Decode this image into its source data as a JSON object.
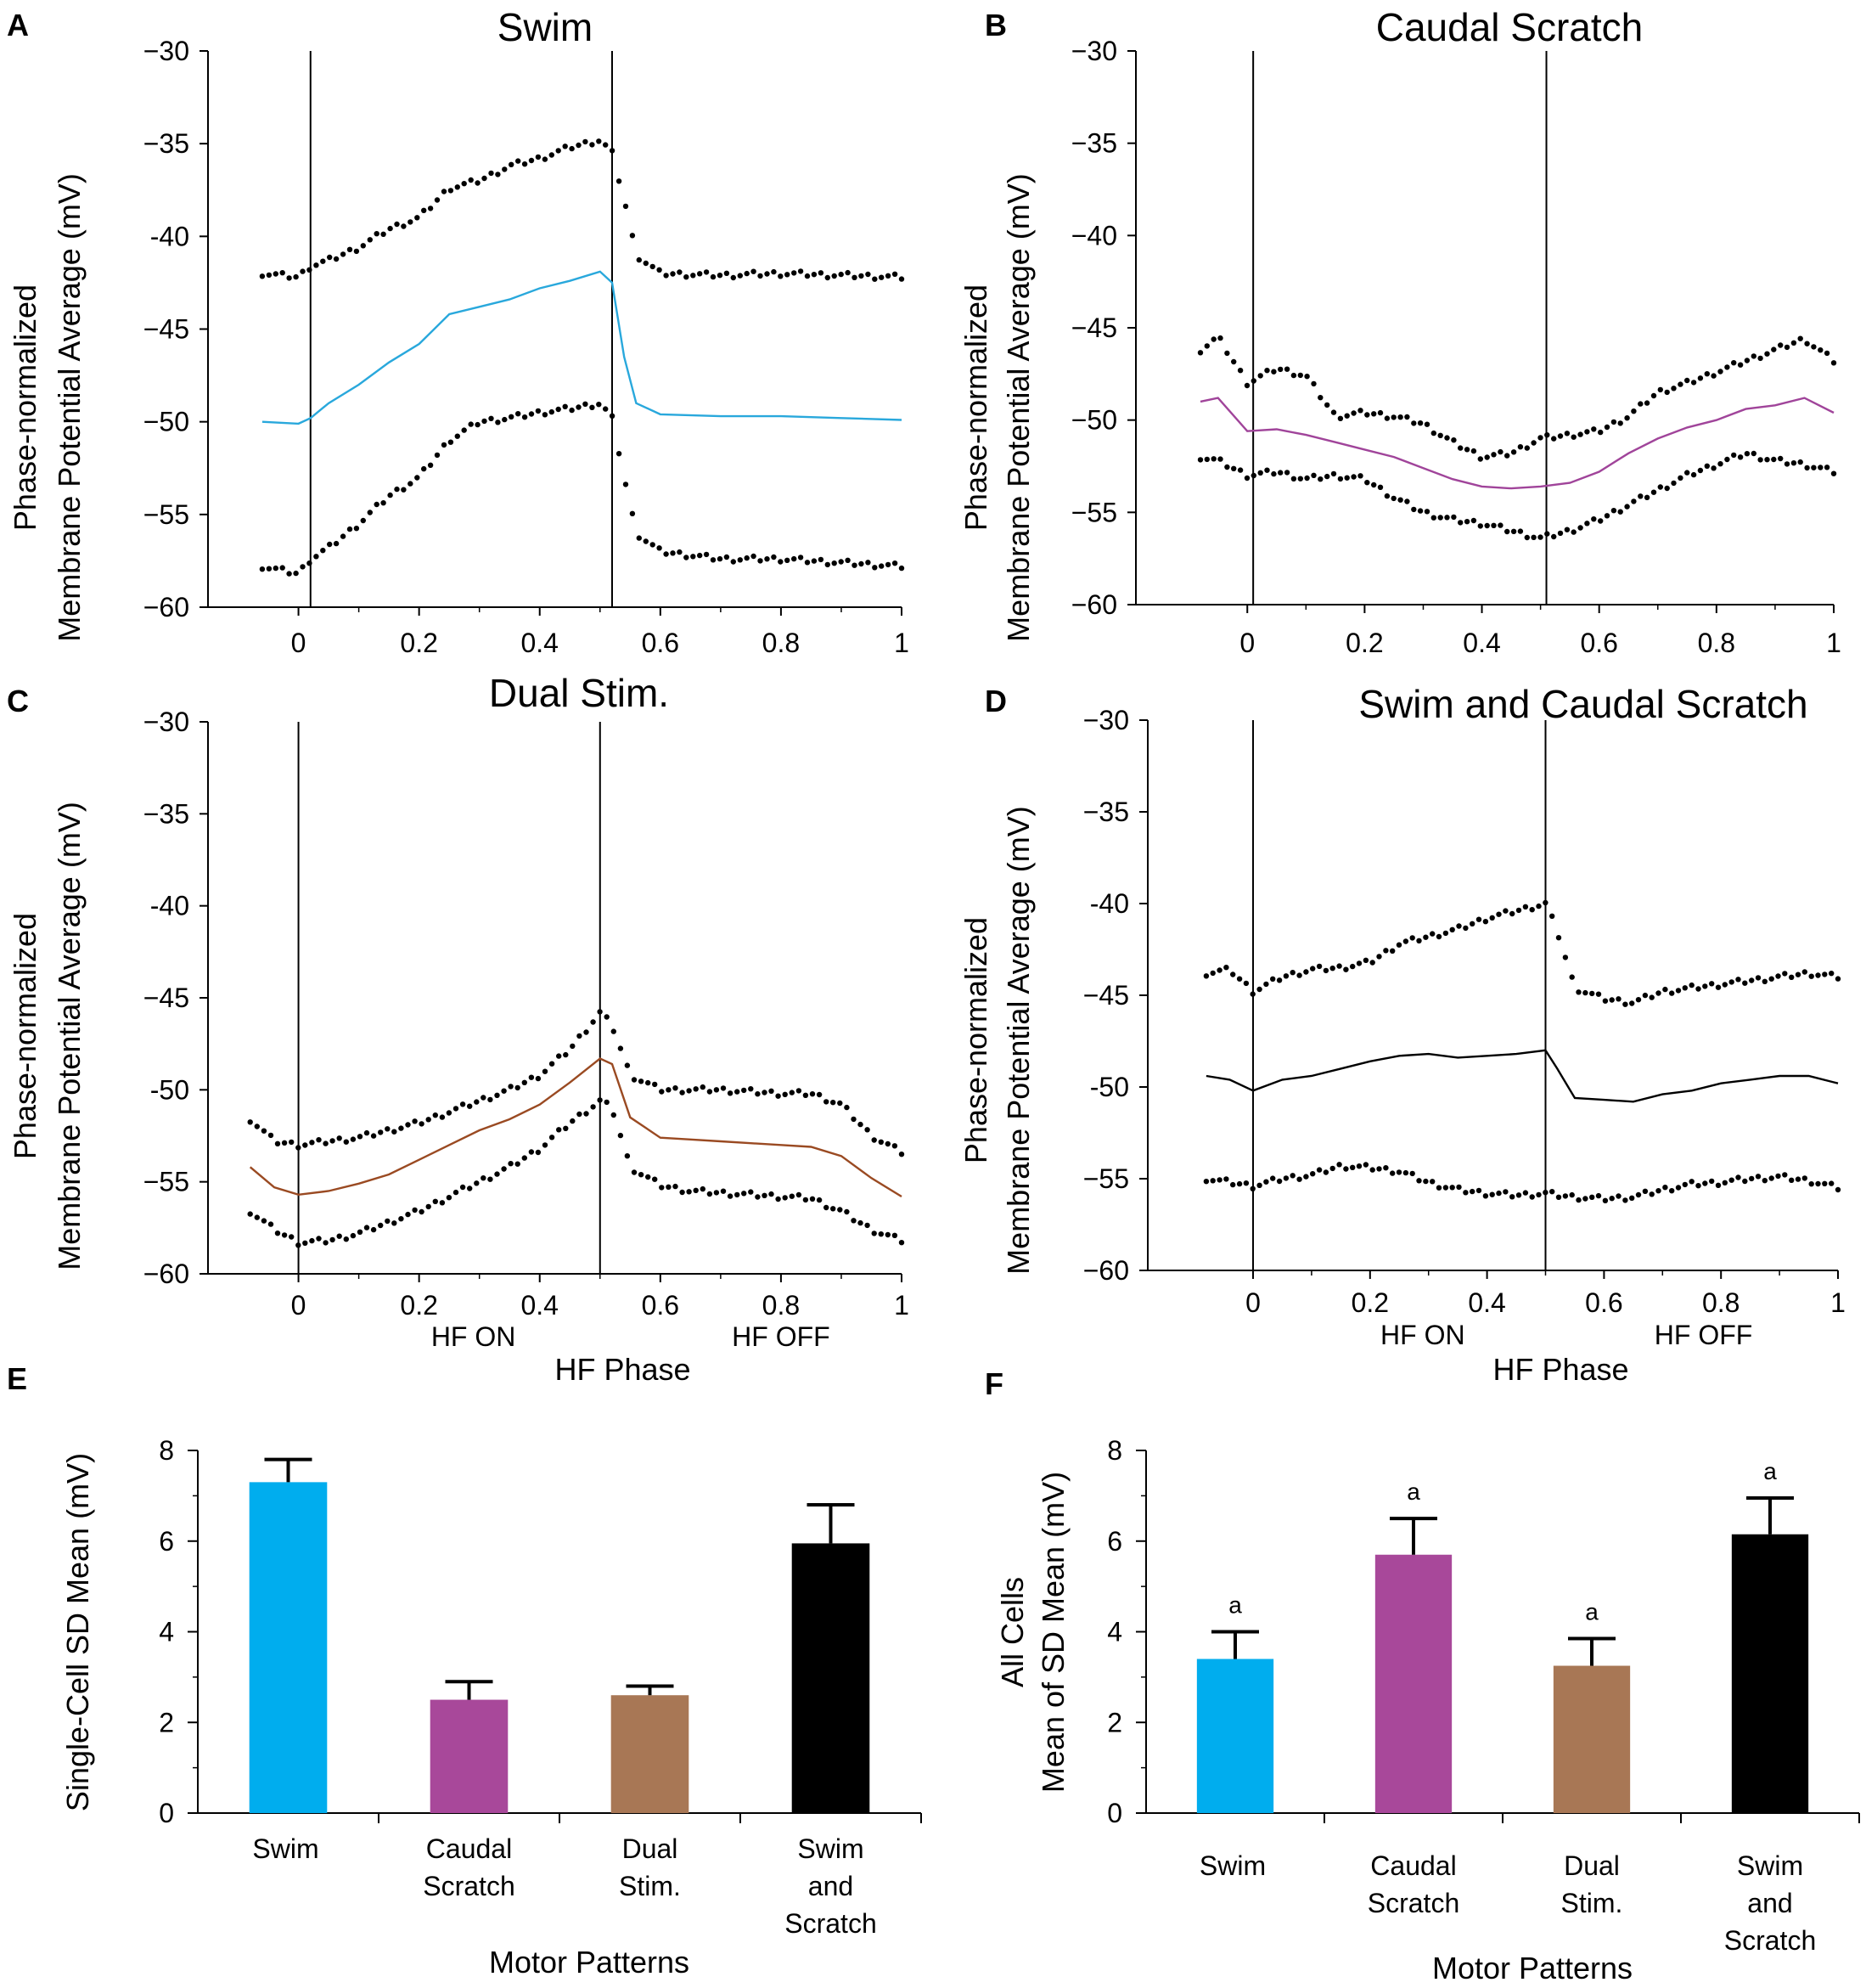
{
  "figure_id": "membrane-potential-figure",
  "chart_data": [
    {
      "panel": "A",
      "type": "line",
      "title": "Swim",
      "ylabel_lines": [
        "Phase-normalized",
        "Membrane Potential Average (mV)"
      ],
      "xlabel": "",
      "y_ticks": [
        "−30",
        "−35",
        "-40",
        "−45",
        "−50",
        "−55",
        "−60"
      ],
      "y_tick_values": [
        -30,
        -35,
        -40,
        -45,
        -50,
        -55,
        -60
      ],
      "x_ticks": [
        "0",
        "0.2",
        "0.4",
        "0.6",
        "0.8",
        "1"
      ],
      "x_tick_values": [
        0,
        0.2,
        0.4,
        0.6,
        0.8,
        1
      ],
      "xlim": [
        -0.15,
        1.0
      ],
      "ylim": [
        -60,
        -30
      ],
      "vlines": [
        0.02,
        0.52
      ],
      "phase_labels": [],
      "mean_color": "#29a8dc",
      "series": [
        {
          "name": "upper",
          "style": "dots",
          "x": [
            -0.06,
            0.0,
            0.02,
            0.05,
            0.1,
            0.15,
            0.2,
            0.25,
            0.3,
            0.35,
            0.4,
            0.45,
            0.5,
            0.52,
            0.54,
            0.56,
            0.6,
            0.7,
            0.8,
            0.9,
            1.0
          ],
          "y": [
            -42.0,
            -42.2,
            -41.6,
            -41.3,
            -40.6,
            -39.6,
            -39.0,
            -37.4,
            -37.0,
            -36.2,
            -35.8,
            -35.2,
            -34.8,
            -35.5,
            -38.0,
            -41.0,
            -42.0,
            -42.1,
            -42.0,
            -42.1,
            -42.2
          ]
        },
        {
          "name": "mean",
          "style": "line",
          "x": [
            -0.06,
            0.0,
            0.02,
            0.05,
            0.1,
            0.15,
            0.2,
            0.25,
            0.3,
            0.35,
            0.4,
            0.45,
            0.5,
            0.52,
            0.54,
            0.56,
            0.6,
            0.7,
            0.8,
            0.9,
            1.0
          ],
          "y": [
            -50.0,
            -50.1,
            -49.8,
            -49.0,
            -48.0,
            -46.8,
            -45.8,
            -44.2,
            -43.8,
            -43.4,
            -42.8,
            -42.4,
            -41.9,
            -42.5,
            -46.5,
            -49.0,
            -49.6,
            -49.7,
            -49.7,
            -49.8,
            -49.9
          ]
        },
        {
          "name": "lower",
          "style": "dots",
          "x": [
            -0.06,
            0.0,
            0.02,
            0.05,
            0.1,
            0.15,
            0.2,
            0.25,
            0.3,
            0.35,
            0.4,
            0.45,
            0.5,
            0.52,
            0.54,
            0.56,
            0.6,
            0.7,
            0.8,
            0.9,
            1.0
          ],
          "y": [
            -57.8,
            -58.2,
            -57.4,
            -56.8,
            -55.5,
            -54.0,
            -53.0,
            -51.0,
            -50.0,
            -49.8,
            -49.5,
            -49.3,
            -49.0,
            -49.8,
            -53.0,
            -56.0,
            -57.0,
            -57.4,
            -57.4,
            -57.6,
            -57.8
          ]
        }
      ]
    },
    {
      "panel": "B",
      "type": "line",
      "title": "Caudal Scratch",
      "ylabel_lines": [
        "Phase-normalized",
        "Membrane Potential Average (mV)"
      ],
      "xlabel": "",
      "y_ticks": [
        "−30",
        "−35",
        "−40",
        "−45",
        "−50",
        "−55",
        "−60"
      ],
      "y_tick_values": [
        -30,
        -35,
        -40,
        -45,
        -50,
        -55,
        -60
      ],
      "x_ticks": [
        "0",
        "0.2",
        "0.4",
        "0.6",
        "0.8",
        "1"
      ],
      "x_tick_values": [
        0,
        0.2,
        0.4,
        0.6,
        0.8,
        1
      ],
      "xlim": [
        -0.19,
        1.0
      ],
      "ylim": [
        -60,
        -30
      ],
      "vlines": [
        0.01,
        0.51
      ],
      "phase_labels": [],
      "mean_color": "#a0449a",
      "series": [
        {
          "name": "upper",
          "style": "dots",
          "x": [
            -0.08,
            -0.05,
            0.0,
            0.05,
            0.1,
            0.15,
            0.2,
            0.25,
            0.3,
            0.35,
            0.4,
            0.45,
            0.5,
            0.55,
            0.6,
            0.65,
            0.7,
            0.75,
            0.8,
            0.85,
            0.9,
            0.95,
            1.0
          ],
          "y": [
            -46.2,
            -45.5,
            -48.0,
            -47.2,
            -47.6,
            -49.8,
            -49.6,
            -49.8,
            -50.2,
            -51.2,
            -52.0,
            -51.8,
            -51.0,
            -50.8,
            -50.6,
            -49.8,
            -48.5,
            -48.0,
            -47.4,
            -46.8,
            -46.2,
            -45.6,
            -46.8
          ]
        },
        {
          "name": "mean",
          "style": "line",
          "x": [
            -0.08,
            -0.05,
            0.0,
            0.05,
            0.1,
            0.15,
            0.2,
            0.25,
            0.3,
            0.35,
            0.4,
            0.45,
            0.5,
            0.55,
            0.6,
            0.65,
            0.7,
            0.75,
            0.8,
            0.85,
            0.9,
            0.95,
            1.0
          ],
          "y": [
            -49.0,
            -48.8,
            -50.6,
            -50.5,
            -50.8,
            -51.2,
            -51.6,
            -52.0,
            -52.6,
            -53.2,
            -53.6,
            -53.7,
            -53.6,
            -53.4,
            -52.8,
            -51.8,
            -51.0,
            -50.4,
            -50.0,
            -49.4,
            -49.2,
            -48.8,
            -49.6
          ]
        },
        {
          "name": "lower",
          "style": "dots",
          "x": [
            -0.08,
            -0.05,
            0.0,
            0.05,
            0.1,
            0.15,
            0.2,
            0.25,
            0.3,
            0.35,
            0.4,
            0.45,
            0.5,
            0.55,
            0.6,
            0.65,
            0.7,
            0.75,
            0.8,
            0.85,
            0.9,
            0.95,
            1.0
          ],
          "y": [
            -52.0,
            -52.2,
            -53.0,
            -52.8,
            -53.2,
            -53.0,
            -53.2,
            -54.2,
            -55.0,
            -55.4,
            -55.6,
            -56.0,
            -56.4,
            -56.0,
            -55.4,
            -54.6,
            -53.8,
            -53.0,
            -52.4,
            -51.8,
            -52.2,
            -52.4,
            -52.8
          ]
        }
      ]
    },
    {
      "panel": "C",
      "type": "line",
      "title": "Dual Stim.",
      "ylabel_lines": [
        "Phase-normalized",
        "Membrane Potential Average (mV)"
      ],
      "xlabel": "HF Phase",
      "y_ticks": [
        "−30",
        "−35",
        "-40",
        "−45",
        "-50",
        "−55",
        "−60"
      ],
      "y_tick_values": [
        -30,
        -35,
        -40,
        -45,
        -50,
        -55,
        -60
      ],
      "x_ticks": [
        "0",
        "0.2",
        "0.4",
        "0.6",
        "0.8",
        "1"
      ],
      "x_tick_values": [
        0,
        0.2,
        0.4,
        0.6,
        0.8,
        1
      ],
      "xlim": [
        -0.15,
        1.0
      ],
      "ylim": [
        -60,
        -30
      ],
      "vlines": [
        0.0,
        0.5
      ],
      "phase_labels": [
        {
          "text": "HF ON",
          "x": 0.29
        },
        {
          "text": "HF OFF",
          "x": 0.8
        }
      ],
      "mean_color": "#9a4a22",
      "series": [
        {
          "name": "upper",
          "style": "dots",
          "x": [
            -0.08,
            -0.04,
            0.0,
            0.05,
            0.1,
            0.15,
            0.2,
            0.25,
            0.3,
            0.35,
            0.4,
            0.45,
            0.5,
            0.52,
            0.55,
            0.6,
            0.65,
            0.7,
            0.75,
            0.8,
            0.85,
            0.9,
            0.95,
            1.0
          ],
          "y": [
            -51.6,
            -52.8,
            -53.0,
            -52.8,
            -52.6,
            -52.2,
            -51.8,
            -51.2,
            -50.6,
            -50.0,
            -49.2,
            -47.8,
            -45.8,
            -46.5,
            -49.2,
            -50.0,
            -50.0,
            -50.0,
            -50.1,
            -50.2,
            -50.2,
            -50.8,
            -52.5,
            -53.4
          ]
        },
        {
          "name": "mean",
          "style": "line",
          "x": [
            -0.08,
            -0.04,
            0.0,
            0.05,
            0.1,
            0.15,
            0.2,
            0.25,
            0.3,
            0.35,
            0.4,
            0.45,
            0.5,
            0.52,
            0.55,
            0.6,
            0.65,
            0.7,
            0.75,
            0.8,
            0.85,
            0.9,
            0.95,
            1.0
          ],
          "y": [
            -54.2,
            -55.3,
            -55.7,
            -55.5,
            -55.1,
            -54.6,
            -53.8,
            -53.0,
            -52.2,
            -51.6,
            -50.8,
            -49.6,
            -48.3,
            -48.6,
            -51.5,
            -52.6,
            -52.7,
            -52.8,
            -52.9,
            -53.0,
            -53.1,
            -53.6,
            -54.8,
            -55.8
          ]
        },
        {
          "name": "lower",
          "style": "dots",
          "x": [
            -0.08,
            -0.04,
            0.0,
            0.05,
            0.1,
            0.15,
            0.2,
            0.25,
            0.3,
            0.35,
            0.4,
            0.45,
            0.5,
            0.52,
            0.55,
            0.6,
            0.65,
            0.7,
            0.75,
            0.8,
            0.85,
            0.9,
            0.95,
            1.0
          ],
          "y": [
            -56.6,
            -57.6,
            -58.3,
            -58.2,
            -57.8,
            -57.2,
            -56.6,
            -55.8,
            -55.0,
            -54.2,
            -53.2,
            -51.8,
            -50.6,
            -51.0,
            -54.2,
            -55.2,
            -55.5,
            -55.6,
            -55.7,
            -55.8,
            -55.9,
            -56.6,
            -57.6,
            -58.2
          ]
        }
      ]
    },
    {
      "panel": "D",
      "type": "line",
      "title": "Swim and Caudal Scratch",
      "ylabel_lines": [
        "Phase-normalized",
        "Membrane Potential Average (mV)"
      ],
      "xlabel": "HF Phase",
      "y_ticks": [
        "−30",
        "−35",
        "-40",
        "−45",
        "-50",
        "−55",
        "−60"
      ],
      "y_tick_values": [
        -30,
        -35,
        -40,
        -45,
        -50,
        -55,
        -60
      ],
      "x_ticks": [
        "0",
        "0.2",
        "0.4",
        "0.6",
        "0.8",
        "1"
      ],
      "x_tick_values": [
        0,
        0.2,
        0.4,
        0.6,
        0.8,
        1
      ],
      "xlim": [
        -0.18,
        1.0
      ],
      "ylim": [
        -60,
        -30
      ],
      "vlines": [
        0.0,
        0.5
      ],
      "phase_labels": [
        {
          "text": "HF ON",
          "x": 0.29
        },
        {
          "text": "HF OFF",
          "x": 0.77
        }
      ],
      "mean_color": "#000000",
      "series": [
        {
          "name": "upper",
          "style": "dots",
          "x": [
            -0.08,
            -0.04,
            0.0,
            0.05,
            0.1,
            0.15,
            0.2,
            0.25,
            0.3,
            0.35,
            0.4,
            0.45,
            0.5,
            0.52,
            0.55,
            0.6,
            0.65,
            0.7,
            0.75,
            0.8,
            0.85,
            0.9,
            0.95,
            1.0
          ],
          "y": [
            -43.8,
            -43.6,
            -44.8,
            -44.0,
            -43.6,
            -43.5,
            -43.2,
            -42.2,
            -41.8,
            -41.4,
            -40.8,
            -40.4,
            -40.0,
            -41.5,
            -44.6,
            -45.2,
            -45.4,
            -44.8,
            -44.6,
            -44.4,
            -44.2,
            -44.0,
            -43.8,
            -44.0
          ]
        },
        {
          "name": "mean",
          "style": "line",
          "x": [
            -0.08,
            -0.04,
            0.0,
            0.05,
            0.1,
            0.15,
            0.2,
            0.25,
            0.3,
            0.35,
            0.4,
            0.45,
            0.5,
            0.52,
            0.55,
            0.6,
            0.65,
            0.7,
            0.75,
            0.8,
            0.85,
            0.9,
            0.95,
            1.0
          ],
          "y": [
            -49.4,
            -49.6,
            -50.2,
            -49.6,
            -49.4,
            -49.0,
            -48.6,
            -48.3,
            -48.2,
            -48.4,
            -48.3,
            -48.2,
            -48.0,
            -49.0,
            -50.6,
            -50.7,
            -50.8,
            -50.4,
            -50.2,
            -49.8,
            -49.6,
            -49.4,
            -49.4,
            -49.8
          ]
        },
        {
          "name": "lower",
          "style": "dots",
          "x": [
            -0.08,
            -0.04,
            0.0,
            0.05,
            0.1,
            0.15,
            0.2,
            0.25,
            0.3,
            0.35,
            0.4,
            0.45,
            0.5,
            0.52,
            0.55,
            0.6,
            0.65,
            0.7,
            0.75,
            0.8,
            0.85,
            0.9,
            0.95,
            1.0
          ],
          "y": [
            -55.0,
            -55.2,
            -55.4,
            -55.0,
            -54.8,
            -54.3,
            -54.4,
            -54.6,
            -55.2,
            -55.6,
            -55.8,
            -55.9,
            -55.8,
            -55.9,
            -56.0,
            -56.1,
            -56.0,
            -55.6,
            -55.3,
            -55.2,
            -55.0,
            -54.9,
            -55.1,
            -55.5
          ]
        }
      ]
    },
    {
      "panel": "E",
      "type": "bar",
      "title": "",
      "ylabel_lines": [
        "Single-Cell SD Mean (mV)"
      ],
      "xlabel": "Motor Patterns",
      "categories": [
        [
          "Swim"
        ],
        [
          "Caudal",
          "Scratch"
        ],
        [
          "Dual",
          "Stim."
        ],
        [
          "Swim",
          "and",
          "Scratch"
        ]
      ],
      "values": [
        7.3,
        2.5,
        2.6,
        5.95
      ],
      "errors": [
        0.5,
        0.4,
        0.2,
        0.85
      ],
      "sig_labels": [
        "",
        "",
        "",
        ""
      ],
      "colors": [
        "#00adee",
        "#a8489a",
        "#a87755",
        "#000000"
      ],
      "y_ticks": [
        "0",
        "2",
        "4",
        "6",
        "8"
      ],
      "y_tick_values": [
        0,
        2,
        4,
        6,
        8
      ],
      "ylim": [
        0,
        8
      ]
    },
    {
      "panel": "F",
      "type": "bar",
      "title": "",
      "ylabel_lines": [
        "All Cells",
        "Mean of SD Mean (mV)"
      ],
      "xlabel": "Motor Patterns",
      "categories": [
        [
          "Swim"
        ],
        [
          "Caudal",
          "Scratch"
        ],
        [
          "Dual",
          "Stim."
        ],
        [
          "Swim",
          "and",
          "Scratch"
        ]
      ],
      "values": [
        3.4,
        5.7,
        3.25,
        6.15
      ],
      "errors": [
        0.6,
        0.8,
        0.6,
        0.8
      ],
      "sig_labels": [
        "a",
        "a",
        "a",
        "a"
      ],
      "colors": [
        "#00adee",
        "#a8489a",
        "#a87755",
        "#000000"
      ],
      "y_ticks": [
        "0",
        "2",
        "4",
        "6",
        "8"
      ],
      "y_tick_values": [
        0,
        2,
        4,
        6,
        8
      ],
      "ylim": [
        0,
        8
      ]
    }
  ]
}
